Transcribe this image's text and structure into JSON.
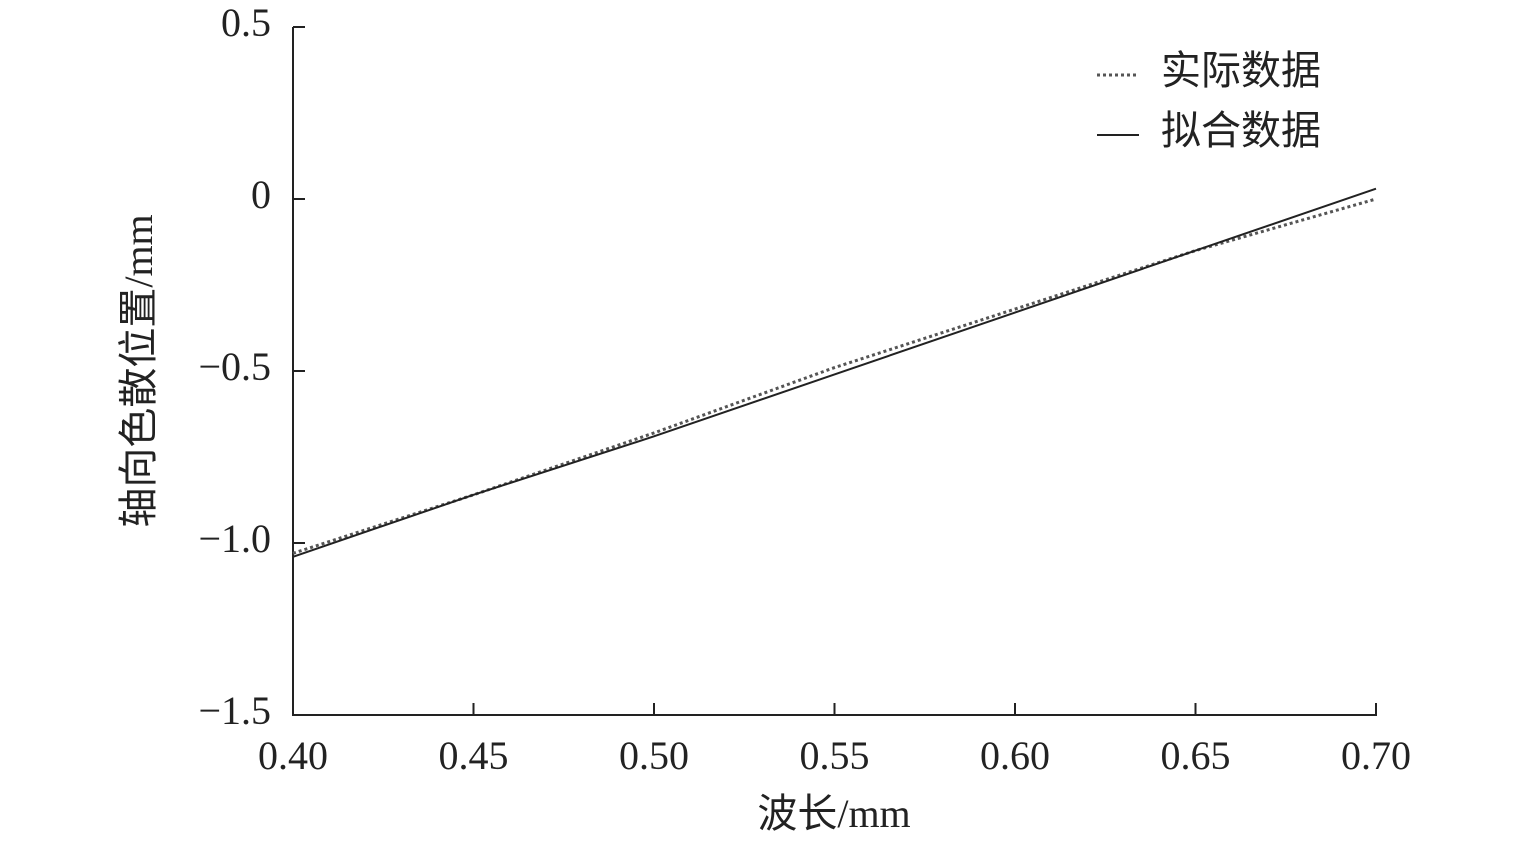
{
  "chart_data": {
    "type": "line",
    "x_label": "波长/mm",
    "y_label": "轴向色散位置/mm",
    "x": [
      0.4,
      0.45,
      0.5,
      0.55,
      0.6,
      0.65,
      0.7
    ],
    "series": [
      {
        "name": "实际数据",
        "color": "#555555",
        "linestyle": "dotted",
        "values": [
          -1.03,
          -0.86,
          -0.68,
          -0.49,
          -0.32,
          -0.15,
          0.0
        ]
      },
      {
        "name": "拟合数据",
        "color": "#222222",
        "linestyle": "solid",
        "values": [
          -1.04,
          -0.86,
          -0.69,
          -0.51,
          -0.33,
          -0.15,
          0.03
        ]
      }
    ],
    "xlim": [
      0.4,
      0.7
    ],
    "ylim": [
      -1.5,
      0.5
    ],
    "xticks": [
      {
        "value": 0.4,
        "label": "0.40"
      },
      {
        "value": 0.45,
        "label": "0.45"
      },
      {
        "value": 0.5,
        "label": "0.50"
      },
      {
        "value": 0.55,
        "label": "0.55"
      },
      {
        "value": 0.6,
        "label": "0.60"
      },
      {
        "value": 0.65,
        "label": "0.65"
      },
      {
        "value": 0.7,
        "label": "0.70"
      }
    ],
    "yticks": [
      0.5,
      0,
      {
        "value": -0.5,
        "label": "−0.5"
      },
      {
        "value": -1.0,
        "label": "−1.0"
      },
      {
        "value": -1.5,
        "label": "−1.5"
      }
    ],
    "grid": false,
    "legend": "upper right"
  }
}
